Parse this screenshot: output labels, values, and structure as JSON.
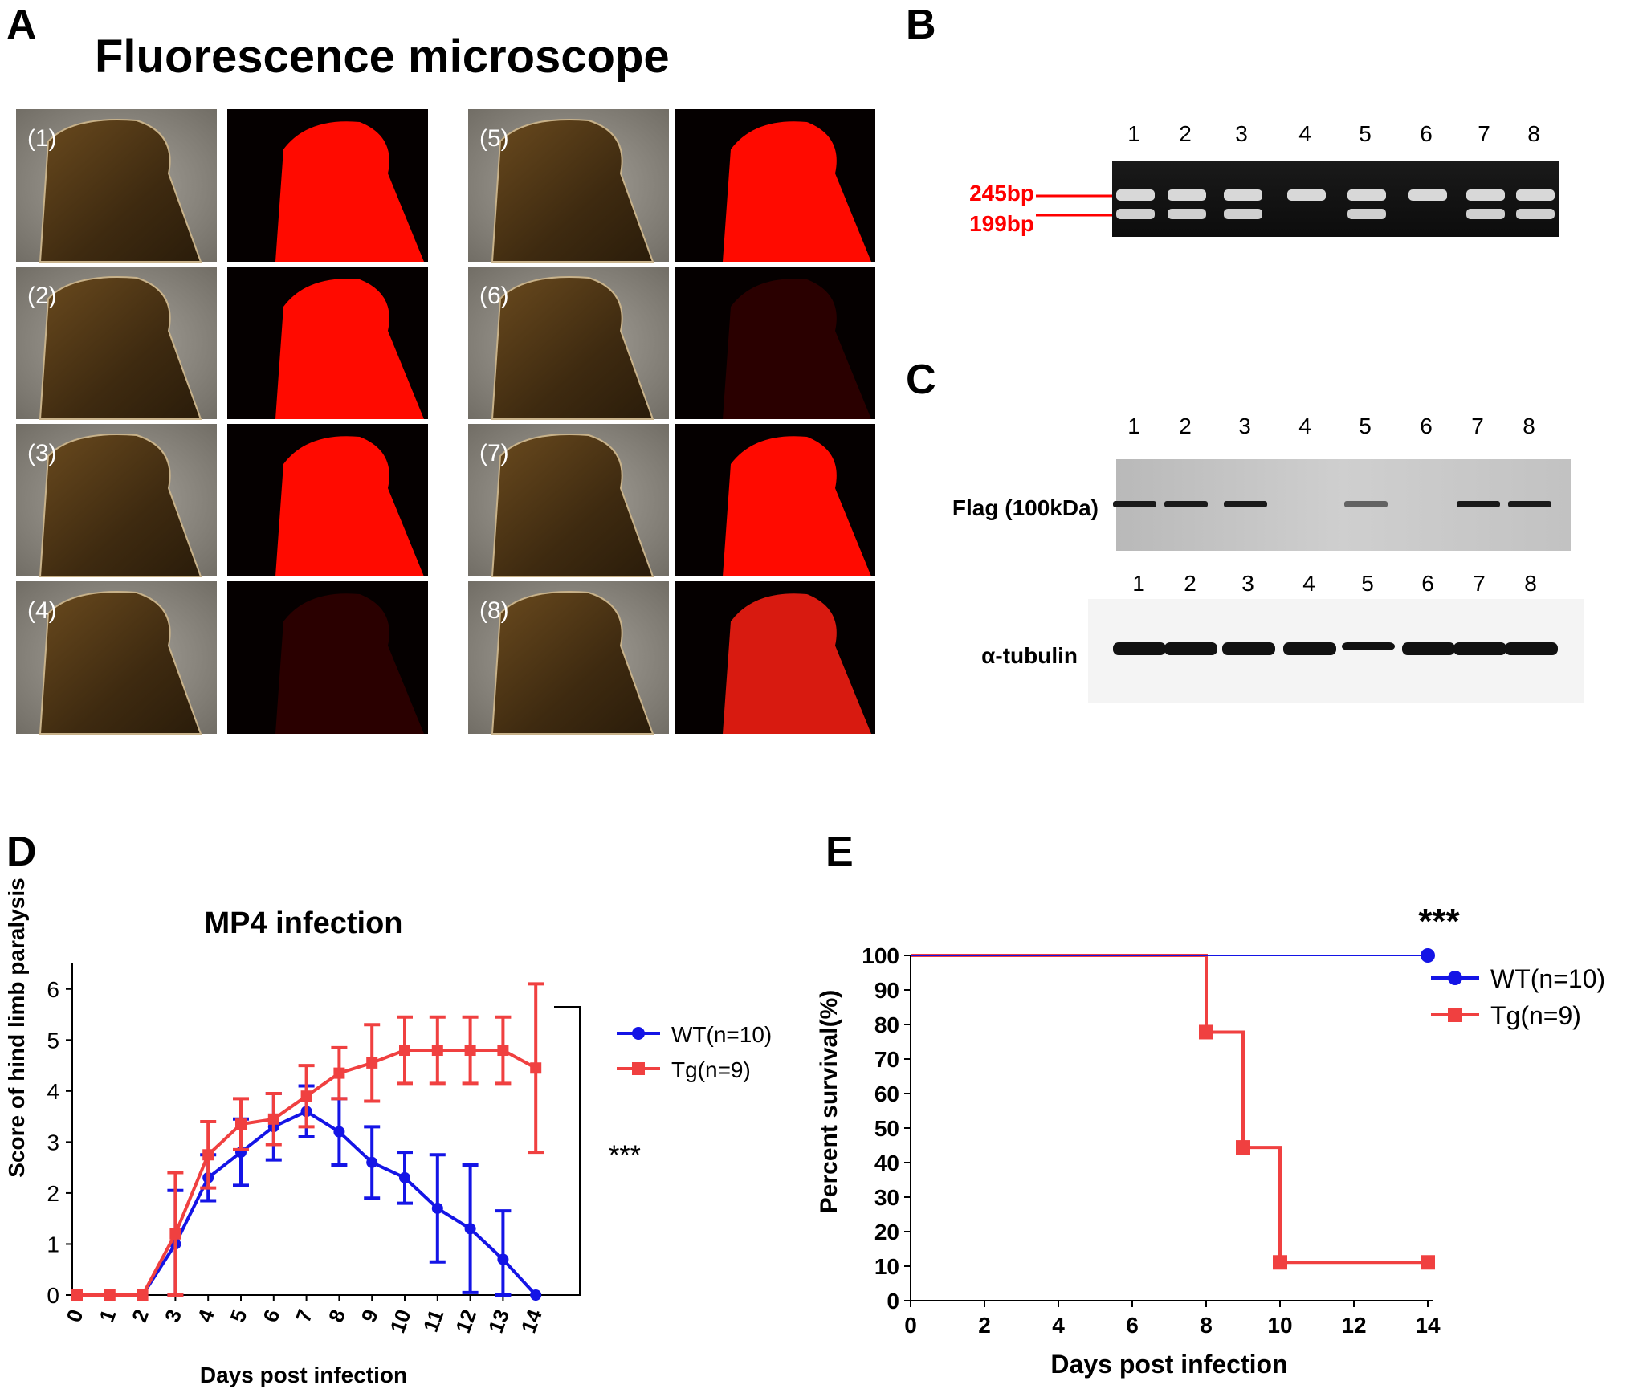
{
  "panels": {
    "a": {
      "letter": "A",
      "title": "Fluorescence microscope",
      "tiles": [
        {
          "label": "(1)",
          "fluor": "bright"
        },
        {
          "label": "(2)",
          "fluor": "bright"
        },
        {
          "label": "(3)",
          "fluor": "bright"
        },
        {
          "label": "(4)",
          "fluor": "dim"
        },
        {
          "label": "(5)",
          "fluor": "bright"
        },
        {
          "label": "(6)",
          "fluor": "dim"
        },
        {
          "label": "(7)",
          "fluor": "bright"
        },
        {
          "label": "(8)",
          "fluor": "medium"
        }
      ]
    },
    "b": {
      "letter": "B",
      "lanes": [
        "1",
        "2",
        "3",
        "4",
        "5",
        "6",
        "7",
        "8"
      ],
      "band_labels": [
        "245bp",
        "199bp"
      ],
      "lane_genotype": [
        "both",
        "both",
        "both",
        "upper",
        "both",
        "upper",
        "both",
        "both"
      ]
    },
    "c": {
      "letter": "C",
      "lanes": [
        "1",
        "2",
        "3",
        "4",
        "5",
        "6",
        "7",
        "8"
      ],
      "flag_label": "Flag (100kDa)",
      "tubulin_label": "α-tubulin",
      "flag_present": [
        1,
        1,
        1,
        0,
        0.6,
        0,
        1,
        1
      ]
    },
    "d": {
      "letter": "D",
      "significance": "***"
    },
    "e": {
      "letter": "E",
      "significance": "***"
    }
  },
  "colors": {
    "wt": "#1414e6",
    "tg": "#f04040",
    "marker_text": "#ff0000",
    "fluor": "#ff0a00"
  },
  "chart_data": [
    {
      "type": "line",
      "title": "MP4 infection",
      "xlabel": "Days post infection",
      "ylabel": "Score of hind limb paralysis",
      "x": [
        0,
        1,
        2,
        3,
        4,
        5,
        6,
        7,
        8,
        9,
        10,
        11,
        12,
        13,
        14
      ],
      "ylim": [
        0,
        6.5
      ],
      "yticks": [
        0,
        1,
        2,
        3,
        4,
        5,
        6
      ],
      "series": [
        {
          "name": "WT(n=10)",
          "color": "#1414e6",
          "values": [
            0,
            0,
            0,
            1.0,
            2.3,
            2.8,
            3.3,
            3.6,
            3.2,
            2.6,
            2.3,
            1.7,
            1.3,
            0.7,
            0
          ],
          "err": [
            0,
            0,
            0,
            1.05,
            0.45,
            0.65,
            0.65,
            0.5,
            0.65,
            0.7,
            0.5,
            1.05,
            1.25,
            0.95,
            0
          ]
        },
        {
          "name": "Tg(n=9)",
          "color": "#f04040",
          "values": [
            0,
            0,
            0,
            1.2,
            2.75,
            3.35,
            3.45,
            3.9,
            4.35,
            4.55,
            4.8,
            4.8,
            4.8,
            4.8,
            4.45
          ],
          "err": [
            0,
            0,
            0,
            1.2,
            0.65,
            0.5,
            0.5,
            0.6,
            0.5,
            0.75,
            0.65,
            0.65,
            0.65,
            0.65,
            1.65
          ]
        }
      ],
      "legend": "right"
    },
    {
      "type": "line",
      "xlabel": "Days post infection",
      "ylabel": "Percent survival(%)",
      "xlim": [
        0,
        14
      ],
      "xticks": [
        0,
        2,
        4,
        6,
        8,
        10,
        12,
        14
      ],
      "ylim": [
        0,
        100
      ],
      "yticks": [
        0,
        10,
        20,
        30,
        40,
        50,
        60,
        70,
        80,
        90,
        100
      ],
      "series": [
        {
          "name": "WT(n=10)",
          "color": "#1414e6",
          "steps": [
            [
              0,
              100
            ],
            [
              14,
              100
            ]
          ],
          "markers": [
            [
              14,
              100
            ]
          ]
        },
        {
          "name": "Tg(n=9)",
          "color": "#f04040",
          "steps": [
            [
              0,
              100
            ],
            [
              8,
              100
            ],
            [
              8,
              77.8
            ],
            [
              9,
              77.8
            ],
            [
              9,
              44.4
            ],
            [
              10,
              44.4
            ],
            [
              10,
              11.1
            ],
            [
              14,
              11.1
            ]
          ],
          "markers": [
            [
              8,
              77.8
            ],
            [
              9,
              44.4
            ],
            [
              10,
              11.1
            ],
            [
              14,
              11.1
            ]
          ]
        }
      ],
      "legend": "right"
    }
  ]
}
